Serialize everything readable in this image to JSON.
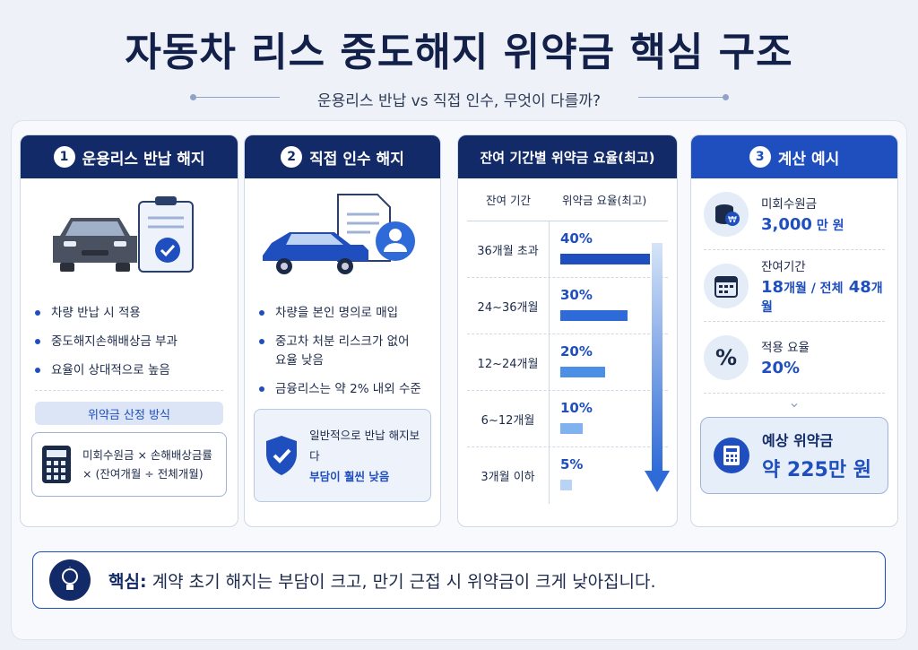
{
  "title": "자동차 리스 중도해지 위약금 핵심 구조",
  "subtitle": "운용리스 반납 vs 직접 인수, 무엇이 다를까?",
  "card1": {
    "number": "1",
    "title": "운용리스 반납 해지",
    "bullets": [
      "차량 반납 시 적용",
      "중도해지손해배상금 부과",
      "요율이 상대적으로 높음"
    ],
    "method_label": "위약금 산정 방식",
    "formula_line1": "미회수원금 × 손해배상금률",
    "formula_line2": "× (잔여개월 ÷ 전체개월)"
  },
  "card2": {
    "number": "2",
    "title": "직접 인수 해지",
    "bullets": [
      "차량을 본인 명의로 매입",
      "중고차 처분 리스크가 없어 요율 낮음",
      "금융리스는 약 2% 내외 수준"
    ],
    "note_line1": "일반적으로 반납 해지보다",
    "note_line2": "부담이 훨씬 낮음"
  },
  "rate_table": {
    "title": "잔여 기간별 위약금 요율(최고)",
    "col1": "잔여 기간",
    "col2": "위약금 요율(최고)",
    "rows": [
      {
        "period": "36개월 초과",
        "rate": "40%"
      },
      {
        "period": "24~36개월",
        "rate": "30%"
      },
      {
        "period": "12~24개월",
        "rate": "20%"
      },
      {
        "period": "6~12개월",
        "rate": "10%"
      },
      {
        "period": "3개월 이하",
        "rate": "5%"
      }
    ],
    "values": [
      40,
      30,
      20,
      10,
      5
    ],
    "bar_colors": [
      "#1f4fbe",
      "#2e6bd8",
      "#4b8fe6",
      "#7fb2ef",
      "#b8d3f5"
    ]
  },
  "example": {
    "number": "3",
    "title": "계산 예시",
    "items": [
      {
        "label": "미회수원금",
        "value": "3,000",
        "unit": "만 원"
      },
      {
        "label": "잔여기간",
        "value": "18",
        "unit": "개월 / 전체",
        "value2": "48",
        "unit2": "개월"
      },
      {
        "label": "적용 요율",
        "value": "20%"
      }
    ],
    "result_label": "예상 위약금",
    "result_value": "약 225만 원"
  },
  "bottom": {
    "keyword": "핵심:",
    "text": "계약 초기 해지는 부담이 크고, 만기 근접 시 위약금이 크게 낮아집니다."
  },
  "colors": {
    "navy": "#132a68",
    "blue": "#1f4fbe",
    "bg": "#eef2f8"
  }
}
